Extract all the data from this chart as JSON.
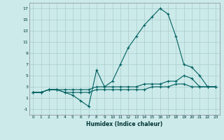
{
  "xlabel": "Humidex (Indice chaleur)",
  "background_color": "#cceaea",
  "grid_color": "#aacccc",
  "line_color": "#006060",
  "xlim": [
    -0.5,
    23.5
  ],
  "ylim": [
    -2,
    18
  ],
  "xticks": [
    0,
    1,
    2,
    3,
    4,
    5,
    6,
    7,
    8,
    9,
    10,
    11,
    12,
    13,
    14,
    15,
    16,
    17,
    18,
    19,
    20,
    21,
    22,
    23
  ],
  "yticks": [
    -1,
    1,
    3,
    5,
    7,
    9,
    11,
    13,
    15,
    17
  ],
  "line1_x": [
    0,
    1,
    2,
    3,
    4,
    5,
    6,
    7,
    8,
    9,
    10,
    11,
    12,
    13,
    14,
    15,
    16,
    17,
    18,
    19,
    20,
    21,
    22,
    23
  ],
  "line1_y": [
    2,
    2,
    2.5,
    2.5,
    2.5,
    2.5,
    2.5,
    2.5,
    3,
    3,
    3,
    3,
    3,
    3,
    3.5,
    3.5,
    3.5,
    4,
    4,
    5,
    4.5,
    3,
    3,
    3
  ],
  "line2_x": [
    0,
    1,
    2,
    3,
    4,
    5,
    6,
    7,
    8,
    9,
    10,
    11,
    12,
    13,
    14,
    15,
    16,
    17,
    18,
    19,
    20,
    21,
    22,
    23
  ],
  "line2_y": [
    2,
    2,
    2.5,
    2.5,
    2,
    2,
    2,
    2,
    2.5,
    2.5,
    2.5,
    2.5,
    2.5,
    2.5,
    2.5,
    3,
    3,
    3,
    3.5,
    3.5,
    3,
    3,
    3,
    3
  ],
  "line3_x": [
    0,
    1,
    2,
    3,
    4,
    5,
    6,
    7,
    8,
    9,
    10,
    11,
    12,
    13,
    14,
    15,
    16,
    17,
    18,
    19,
    20,
    21,
    22,
    23
  ],
  "line3_y": [
    2,
    2,
    2.5,
    2.5,
    2,
    1.5,
    0.5,
    -0.5,
    6,
    3,
    4,
    7,
    10,
    12,
    14,
    15.5,
    17,
    16,
    12,
    7,
    6.5,
    5,
    3,
    3
  ]
}
